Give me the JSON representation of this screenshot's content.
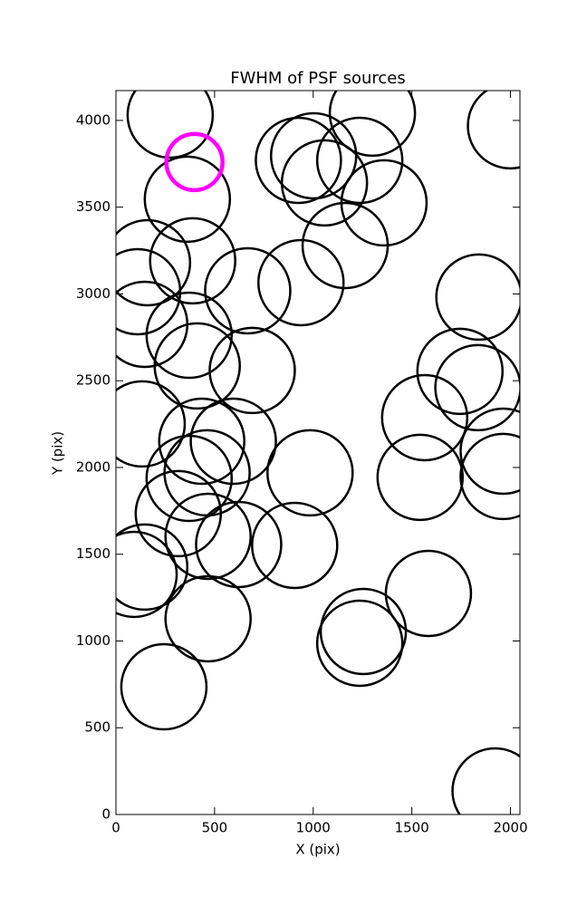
{
  "chart_data": {
    "type": "scatter",
    "title": "FWHM of PSF sources",
    "x_label": "X (pix)",
    "y_label": "Y (pix)",
    "xlim": [
      0,
      2048
    ],
    "ylim": [
      0,
      4172
    ],
    "xticks": [
      0,
      500,
      1000,
      1500,
      2000
    ],
    "yticks": [
      0,
      500,
      1000,
      1500,
      2000,
      2500,
      3000,
      3500,
      4000
    ],
    "grid": false,
    "points": {
      "color": "#000000",
      "x": [
        275,
        1300,
        2000,
        925,
        1002,
        1057,
        1236,
        1359,
        1162,
        362,
        160,
        389,
        110,
        668,
        938,
        1840,
        146,
        371,
        412,
        691,
        1744,
        1835,
        1565,
        133,
        435,
        595,
        1963,
        462,
        371,
        984,
        1542,
        1963,
        316,
        467,
        622,
        906,
        92,
        146,
        1584,
        1254,
        1236,
        467,
        243,
        1922
      ],
      "y": [
        4031,
        4042,
        3969,
        3770,
        3796,
        3640,
        3770,
        3525,
        3279,
        3546,
        3180,
        3191,
        3013,
        3018,
        3065,
        2982,
        2825,
        2762,
        2585,
        2559,
        2554,
        2460,
        2287,
        2251,
        2151,
        2151,
        2094,
        1969,
        1937,
        1969,
        1943,
        1948,
        1734,
        1603,
        1556,
        1551,
        1384,
        1426,
        1274,
        1055,
        987,
        1128,
        736,
        136
      ]
    },
    "highlight": {
      "color": "#ff00ff",
      "x": [
        398
      ],
      "y": [
        3760
      ]
    }
  }
}
